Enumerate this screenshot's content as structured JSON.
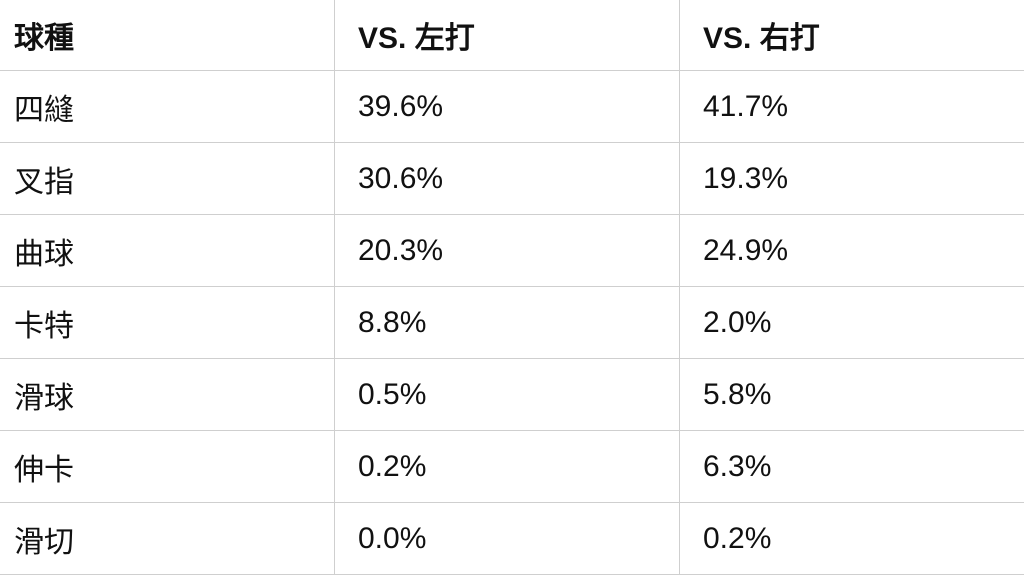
{
  "table": {
    "header": [
      "球種",
      "VS. 左打",
      "VS. 右打"
    ],
    "rows": [
      [
        "四縫",
        "39.6%",
        "41.7%"
      ],
      [
        "叉指",
        "30.6%",
        "19.3%"
      ],
      [
        "曲球",
        "20.3%",
        "24.9%"
      ],
      [
        "卡特",
        "8.8%",
        "2.0%"
      ],
      [
        "滑球",
        "0.5%",
        "5.8%"
      ],
      [
        "伸卡",
        "0.2%",
        "6.3%"
      ],
      [
        "滑切",
        "0.0%",
        "0.2%"
      ]
    ]
  }
}
